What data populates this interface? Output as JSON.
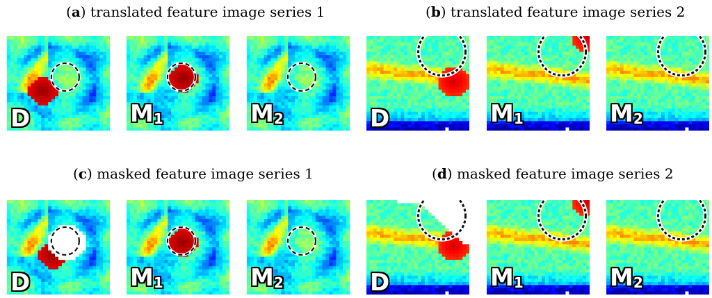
{
  "captions": [
    {
      "letter": "a",
      "text": "translated feature image series 1"
    },
    {
      "letter": "b",
      "text": "translated feature image series 2"
    },
    {
      "letter": "c",
      "text": "masked feature image series 1"
    },
    {
      "letter": "d",
      "text": "masked feature image series 2"
    }
  ],
  "panel_labels": [
    {
      "main": "D",
      "sub": ""
    },
    {
      "main": "M",
      "sub": "1"
    },
    {
      "main": "M",
      "sub": "2"
    }
  ],
  "colormap": "jet"
}
